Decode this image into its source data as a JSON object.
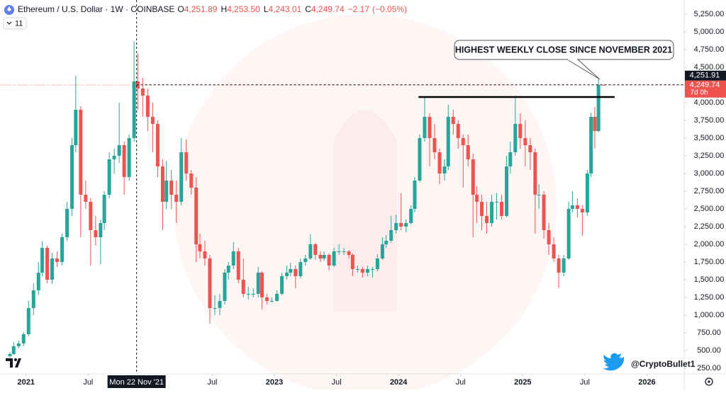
{
  "chart_data": {
    "type": "candlestick",
    "symbol": "Ethereum / U.S. Dollar · 1W · COINBASE",
    "header_values": [
      {
        "prefix": "O",
        "value": 4251.89,
        "label": "4,251.89"
      },
      {
        "prefix": "H",
        "value": 4253.5,
        "label": "4,253.50"
      },
      {
        "prefix": "L",
        "value": 4243.01,
        "label": "4,243.01"
      },
      {
        "prefix": "C",
        "value": 4249.74,
        "label": "4,249.74"
      }
    ],
    "change": {
      "value": -2.17,
      "label": "−2.17",
      "percent": -0.05,
      "percent_label": "(−0.05%)"
    },
    "indicator_count": "11",
    "annotation": "HIGHEST WEEKLY CLOSE SINCE NOVEMBER 2021",
    "handle": "@CryptoBullet1",
    "crosshair": {
      "x": 2021.89,
      "label": "Mon 22 Nov '21",
      "price": {
        "value": 4251.91,
        "label": "4,251.91"
      }
    },
    "last_price": {
      "value": 4249.74,
      "label": "4,249.74",
      "countdown": "7d 0h"
    },
    "level_line": {
      "y": 4080,
      "x": [
        2024.16,
        2025.74
      ]
    },
    "grid": false,
    "xlim": [
      2020.79,
      2026.3
    ],
    "ylim": [
      170,
      5450
    ],
    "xticks": [
      2021,
      {
        "value": 2021.5,
        "label": "Jul"
      },
      {
        "value": 2022.5,
        "label": "Jul"
      },
      2023,
      {
        "value": 2023.5,
        "label": "Jul"
      },
      2024,
      {
        "value": 2024.5,
        "label": "Jul"
      },
      2025,
      {
        "value": 2025.5,
        "label": "Jul"
      },
      2026
    ],
    "yticks": [
      {
        "value": 250,
        "label": "250.00"
      },
      {
        "value": 500,
        "label": "500.00"
      },
      {
        "value": 750,
        "label": "750.00"
      },
      {
        "value": 1000,
        "label": "1,000.00"
      },
      {
        "value": 1250,
        "label": "1,250.00"
      },
      {
        "value": 1500,
        "label": "1,500.00"
      },
      {
        "value": 1750,
        "label": "1,750.00"
      },
      {
        "value": 2000,
        "label": "2,000.00"
      },
      {
        "value": 2250,
        "label": "2,250.00"
      },
      {
        "value": 2500,
        "label": "2,500.00"
      },
      {
        "value": 2750,
        "label": "2,750.00"
      },
      {
        "value": 3000,
        "label": "3,000.00"
      },
      {
        "value": 3250,
        "label": "3,250.00"
      },
      {
        "value": 3500,
        "label": "3,500.00"
      },
      {
        "value": 3750,
        "label": "3,750.00"
      },
      {
        "value": 4000,
        "label": "4,000.00"
      },
      {
        "value": 4500,
        "label": "4,500.00"
      },
      {
        "value": 4750,
        "label": "4,750.00"
      },
      {
        "value": 5000,
        "label": "5,000.00"
      },
      {
        "value": 5250,
        "label": "5,250.00"
      }
    ],
    "series": [
      {
        "up_color": "#26a69a",
        "down_color": "#ef5350",
        "x": [
          2020.87,
          2020.9,
          2020.94,
          2020.98,
          2021.02,
          2021.06,
          2021.1,
          2021.13,
          2021.17,
          2021.21,
          2021.25,
          2021.29,
          2021.33,
          2021.37,
          2021.4,
          2021.44,
          2021.48,
          2021.52,
          2021.56,
          2021.6,
          2021.63,
          2021.67,
          2021.71,
          2021.75,
          2021.79,
          2021.83,
          2021.87,
          2021.9,
          2021.94,
          2021.98,
          2022.02,
          2022.06,
          2022.1,
          2022.13,
          2022.17,
          2022.21,
          2022.25,
          2022.29,
          2022.33,
          2022.37,
          2022.4,
          2022.44,
          2022.48,
          2022.52,
          2022.56,
          2022.6,
          2022.63,
          2022.67,
          2022.71,
          2022.75,
          2022.79,
          2022.83,
          2022.87,
          2022.9,
          2022.94,
          2022.98,
          2023.02,
          2023.06,
          2023.1,
          2023.13,
          2023.17,
          2023.21,
          2023.25,
          2023.29,
          2023.33,
          2023.37,
          2023.4,
          2023.44,
          2023.48,
          2023.52,
          2023.56,
          2023.6,
          2023.63,
          2023.67,
          2023.71,
          2023.75,
          2023.79,
          2023.83,
          2023.87,
          2023.9,
          2023.94,
          2023.98,
          2024.02,
          2024.06,
          2024.1,
          2024.13,
          2024.17,
          2024.21,
          2024.25,
          2024.29,
          2024.33,
          2024.37,
          2024.4,
          2024.44,
          2024.48,
          2024.52,
          2024.56,
          2024.6,
          2024.63,
          2024.67,
          2024.71,
          2024.75,
          2024.79,
          2024.83,
          2024.87,
          2024.9,
          2024.94,
          2024.98,
          2025.02,
          2025.06,
          2025.1,
          2025.13,
          2025.17,
          2025.21,
          2025.25,
          2025.29,
          2025.33,
          2025.37,
          2025.4,
          2025.44,
          2025.48,
          2025.52,
          2025.55,
          2025.58,
          2025.61,
          2025.65
        ],
        "open": [
          420,
          450,
          560,
          600,
          730,
          1100,
          1350,
          1600,
          1950,
          1500,
          1800,
          1750,
          2100,
          2500,
          3400,
          3900,
          2700,
          2600,
          2200,
          2100,
          2300,
          2700,
          3200,
          3250,
          3400,
          2950,
          3500,
          4300,
          4200,
          4100,
          3800,
          3700,
          3100,
          2600,
          2900,
          2700,
          2600,
          3300,
          3000,
          2800,
          2000,
          1900,
          1800,
          1100,
          1100,
          1200,
          1600,
          1700,
          1900,
          1500,
          1300,
          1300,
          1300,
          1600,
          1250,
          1200,
          1200,
          1300,
          1550,
          1600,
          1650,
          1550,
          1750,
          1800,
          2000,
          1850,
          1800,
          1850,
          1700,
          1900,
          1900,
          1900,
          1850,
          1650,
          1650,
          1600,
          1650,
          1650,
          1800,
          2000,
          2050,
          2200,
          2300,
          2250,
          2300,
          2500,
          2900,
          3500,
          3800,
          3500,
          3300,
          3000,
          3100,
          3800,
          3700,
          3500,
          3400,
          3200,
          2700,
          2600,
          2400,
          2300,
          2600,
          2600,
          2400,
          3100,
          3300,
          3700,
          3500,
          3400,
          3300,
          2700,
          2700,
          2200,
          2000,
          1800,
          1600,
          1800,
          2500,
          2550,
          2500,
          2450,
          3000,
          3800,
          3600,
          4251.89
        ],
        "high": [
          480,
          620,
          640,
          760,
          1200,
          1450,
          1750,
          2040,
          1980,
          1880,
          1900,
          2150,
          2600,
          3500,
          4380,
          3950,
          2900,
          2650,
          2400,
          2350,
          2750,
          3300,
          3350,
          4000,
          3450,
          3550,
          4870,
          4700,
          4350,
          4200,
          4000,
          3750,
          3200,
          3180,
          3050,
          2900,
          3500,
          3480,
          3050,
          2950,
          2150,
          2050,
          1850,
          1280,
          1300,
          1650,
          1750,
          2030,
          1950,
          1800,
          1400,
          1380,
          1680,
          1620,
          1300,
          1250,
          1350,
          1600,
          1700,
          1740,
          1700,
          1800,
          1850,
          2140,
          2020,
          1900,
          1900,
          1870,
          1950,
          2000,
          1950,
          1920,
          1870,
          1700,
          1680,
          1700,
          1680,
          1860,
          2100,
          2130,
          2400,
          2420,
          2720,
          2350,
          2550,
          2950,
          3550,
          4090,
          3850,
          3700,
          3350,
          3200,
          3970,
          3900,
          3750,
          3550,
          3550,
          3280,
          2820,
          2700,
          2600,
          2700,
          2720,
          2700,
          3250,
          3450,
          4100,
          3850,
          3750,
          3500,
          3350,
          2850,
          2750,
          2300,
          2100,
          1850,
          1850,
          2600,
          2750,
          2650,
          2550,
          3050,
          3860,
          3940,
          4330,
          4253.5
        ],
        "low": [
          400,
          440,
          530,
          560,
          700,
          1000,
          1280,
          1550,
          1450,
          1440,
          1680,
          1700,
          2050,
          2400,
          3300,
          2100,
          2500,
          1700,
          1980,
          1720,
          2200,
          2650,
          3000,
          3150,
          2700,
          2900,
          3450,
          3900,
          3800,
          3600,
          3300,
          2950,
          2200,
          2500,
          2500,
          2300,
          2550,
          2900,
          2700,
          1750,
          1800,
          1700,
          880,
          1000,
          1000,
          1150,
          1500,
          1650,
          1450,
          1250,
          1220,
          1250,
          1250,
          1080,
          1150,
          1180,
          1190,
          1280,
          1500,
          1550,
          1380,
          1520,
          1700,
          1780,
          1780,
          1750,
          1770,
          1630,
          1680,
          1850,
          1850,
          1800,
          1550,
          1600,
          1530,
          1550,
          1530,
          1620,
          1780,
          1950,
          2020,
          2150,
          2200,
          2170,
          2280,
          2450,
          2880,
          3450,
          3100,
          3200,
          2850,
          2900,
          3050,
          3550,
          3350,
          2800,
          3100,
          2100,
          2300,
          2200,
          2150,
          2250,
          2350,
          2350,
          2380,
          3000,
          3250,
          3350,
          3100,
          3050,
          2150,
          2500,
          2080,
          1850,
          1750,
          1385,
          1550,
          1780,
          2450,
          2380,
          2120,
          2400,
          2950,
          3350,
          3580,
          4243.01
        ],
        "close": [
          450,
          560,
          600,
          730,
          1100,
          1350,
          1600,
          1950,
          1500,
          1800,
          1750,
          2100,
          2500,
          3400,
          3900,
          2700,
          2600,
          2200,
          2100,
          2300,
          2700,
          3200,
          3250,
          3400,
          2950,
          3500,
          4300,
          4200,
          4100,
          3800,
          3700,
          3100,
          2600,
          2900,
          2700,
          2600,
          3300,
          3000,
          2800,
          2000,
          1900,
          1800,
          1100,
          1100,
          1200,
          1600,
          1700,
          1900,
          1500,
          1300,
          1300,
          1300,
          1600,
          1250,
          1200,
          1200,
          1300,
          1550,
          1600,
          1650,
          1550,
          1750,
          1800,
          2000,
          1850,
          1800,
          1850,
          1700,
          1900,
          1900,
          1900,
          1850,
          1650,
          1650,
          1600,
          1650,
          1650,
          1800,
          2000,
          2050,
          2200,
          2300,
          2250,
          2300,
          2500,
          2900,
          3500,
          3800,
          3500,
          3300,
          3000,
          3100,
          3800,
          3700,
          3500,
          3400,
          3200,
          2700,
          2600,
          2400,
          2300,
          2600,
          2600,
          2400,
          3100,
          3300,
          3700,
          3500,
          3400,
          3300,
          2700,
          2700,
          2200,
          2000,
          1800,
          1600,
          1800,
          2500,
          2550,
          2500,
          2450,
          3000,
          3800,
          3600,
          4251.91,
          4249.74
        ]
      }
    ]
  }
}
